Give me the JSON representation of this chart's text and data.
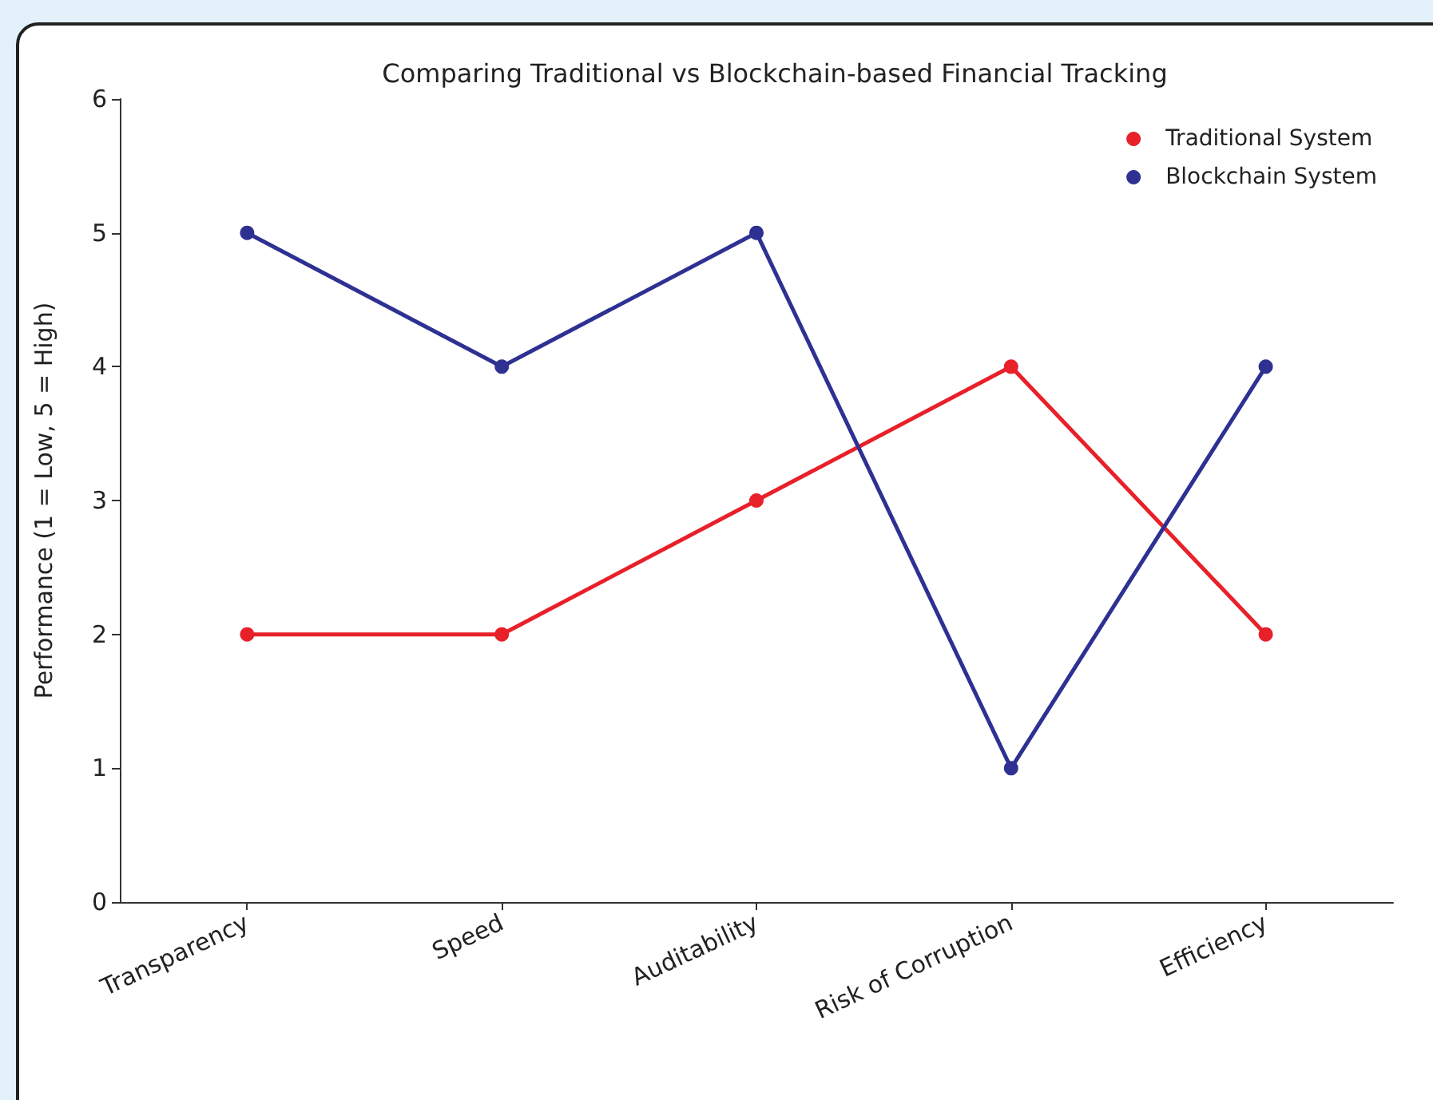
{
  "chart_data": {
    "type": "line",
    "title": "Comparing Traditional vs Blockchain-based Financial Tracking",
    "ylabel": "Performance (1 = Low, 5 = High)",
    "categories": [
      "Transparency",
      "Speed",
      "Auditability",
      "Risk of Corruption",
      "Efficiency"
    ],
    "series": [
      {
        "name": "Traditional System",
        "color": "#e8202a",
        "values": [
          2,
          2,
          3,
          4,
          2
        ]
      },
      {
        "name": "Blockchain System",
        "color": "#2e3192",
        "values": [
          5,
          4,
          5,
          1,
          4
        ]
      }
    ],
    "ylim": [
      0,
      6
    ],
    "yticks": [
      0,
      1,
      2,
      3,
      4,
      5,
      6
    ],
    "grid": false,
    "legend": "top right",
    "marker": "circle",
    "line_style": "solid"
  }
}
